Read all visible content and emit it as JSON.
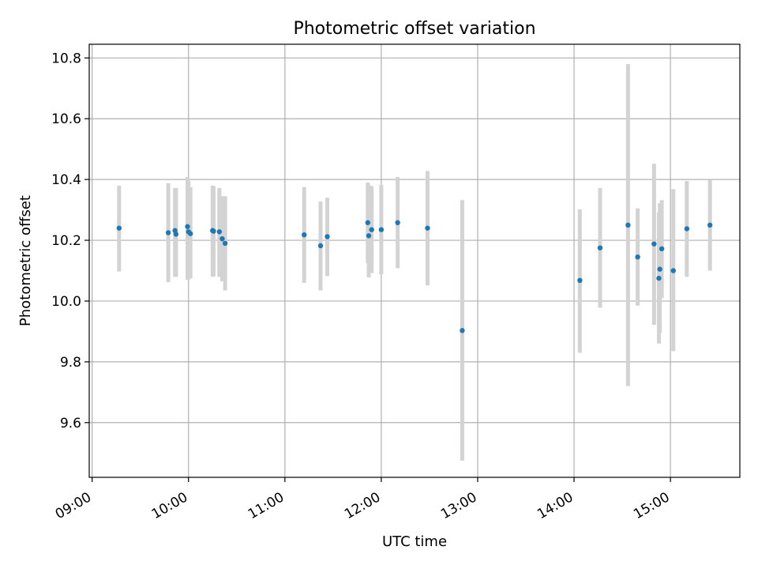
{
  "chart_data": {
    "type": "scatter",
    "title": "Photometric offset variation",
    "xlabel": "UTC time",
    "ylabel": "Photometric offset",
    "xlim_hours": [
      8.97,
      15.72
    ],
    "ylim": [
      9.42,
      10.845
    ],
    "x_ticks": [
      {
        "h": 9,
        "label": "09:00"
      },
      {
        "h": 10,
        "label": "10:00"
      },
      {
        "h": 11,
        "label": "11:00"
      },
      {
        "h": 12,
        "label": "12:00"
      },
      {
        "h": 13,
        "label": "13:00"
      },
      {
        "h": 14,
        "label": "14:00"
      },
      {
        "h": 15,
        "label": "15:00"
      }
    ],
    "y_ticks": [
      {
        "v": 9.6,
        "label": "9.6"
      },
      {
        "v": 9.8,
        "label": "9.8"
      },
      {
        "v": 10.0,
        "label": "10.0"
      },
      {
        "v": 10.2,
        "label": "10.2"
      },
      {
        "v": 10.4,
        "label": "10.4"
      },
      {
        "v": 10.6,
        "label": "10.6"
      },
      {
        "v": 10.8,
        "label": "10.8"
      }
    ],
    "grid": true,
    "point_color": "#1f77b4",
    "errorbar_color": "#d3d3d3",
    "series": [
      {
        "name": "offset",
        "points": [
          {
            "t": 9.28,
            "y": 10.24,
            "lo": 10.097,
            "hi": 10.38
          },
          {
            "t": 9.79,
            "y": 10.225,
            "lo": 10.062,
            "hi": 10.388
          },
          {
            "t": 9.86,
            "y": 10.232,
            "lo": 10.08,
            "hi": 10.372
          },
          {
            "t": 9.87,
            "y": 10.22,
            "lo": 10.08,
            "hi": 10.372
          },
          {
            "t": 9.99,
            "y": 10.245,
            "lo": 10.07,
            "hi": 10.408
          },
          {
            "t": 10.0,
            "y": 10.228,
            "lo": 10.07,
            "hi": 10.395
          },
          {
            "t": 10.02,
            "y": 10.222,
            "lo": 10.075,
            "hi": 10.375
          },
          {
            "t": 10.25,
            "y": 10.232,
            "lo": 10.08,
            "hi": 10.38
          },
          {
            "t": 10.26,
            "y": 10.23,
            "lo": 10.082,
            "hi": 10.378
          },
          {
            "t": 10.32,
            "y": 10.228,
            "lo": 10.08,
            "hi": 10.372
          },
          {
            "t": 10.35,
            "y": 10.205,
            "lo": 10.065,
            "hi": 10.345
          },
          {
            "t": 10.38,
            "y": 10.19,
            "lo": 10.035,
            "hi": 10.345
          },
          {
            "t": 11.2,
            "y": 10.218,
            "lo": 10.06,
            "hi": 10.375
          },
          {
            "t": 11.37,
            "y": 10.182,
            "lo": 10.035,
            "hi": 10.328
          },
          {
            "t": 11.44,
            "y": 10.212,
            "lo": 10.082,
            "hi": 10.34
          },
          {
            "t": 11.86,
            "y": 10.258,
            "lo": 10.125,
            "hi": 10.39
          },
          {
            "t": 11.87,
            "y": 10.215,
            "lo": 10.078,
            "hi": 10.382
          },
          {
            "t": 11.9,
            "y": 10.235,
            "lo": 10.092,
            "hi": 10.378
          },
          {
            "t": 12.0,
            "y": 10.235,
            "lo": 10.088,
            "hi": 10.382
          },
          {
            "t": 12.17,
            "y": 10.258,
            "lo": 10.108,
            "hi": 10.408
          },
          {
            "t": 12.48,
            "y": 10.24,
            "lo": 10.052,
            "hi": 10.428
          },
          {
            "t": 12.84,
            "y": 9.903,
            "lo": 9.475,
            "hi": 10.332
          },
          {
            "t": 14.06,
            "y": 10.068,
            "lo": 9.83,
            "hi": 10.302
          },
          {
            "t": 14.27,
            "y": 10.175,
            "lo": 9.978,
            "hi": 10.372
          },
          {
            "t": 14.56,
            "y": 10.25,
            "lo": 9.72,
            "hi": 10.78
          },
          {
            "t": 14.66,
            "y": 10.145,
            "lo": 9.985,
            "hi": 10.305
          },
          {
            "t": 14.83,
            "y": 10.188,
            "lo": 9.922,
            "hi": 10.452
          },
          {
            "t": 14.88,
            "y": 10.075,
            "lo": 9.86,
            "hi": 10.292
          },
          {
            "t": 14.89,
            "y": 10.105,
            "lo": 9.895,
            "hi": 10.322
          },
          {
            "t": 14.91,
            "y": 10.172,
            "lo": 10.01,
            "hi": 10.332
          },
          {
            "t": 15.03,
            "y": 10.1,
            "lo": 9.835,
            "hi": 10.368
          },
          {
            "t": 15.17,
            "y": 10.238,
            "lo": 10.08,
            "hi": 10.395
          },
          {
            "t": 15.41,
            "y": 10.25,
            "lo": 10.1,
            "hi": 10.398
          }
        ]
      }
    ]
  }
}
